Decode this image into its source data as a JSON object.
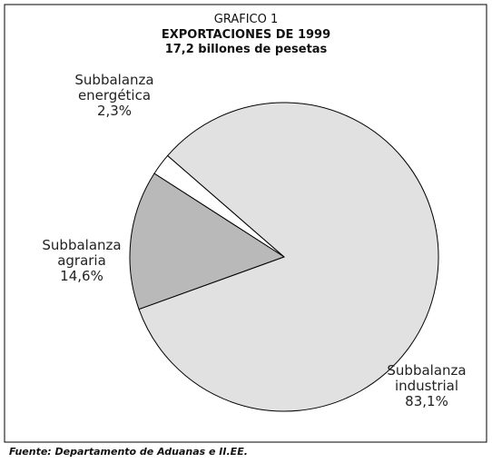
{
  "chart_data": {
    "type": "pie",
    "title": "GRAFICO 1",
    "subtitle": "EXPORTACIONES DE 1999",
    "subtitle2": "17,2 billones de pesetas",
    "source": "Fuente: Departamento de Aduanas e II.EE.",
    "categories": [
      "Subbalanza energética",
      "Subbalanza agraria",
      "Subbalanza industrial"
    ],
    "values": [
      2.3,
      14.6,
      83.1
    ],
    "value_labels": [
      "2,3%",
      "14,6%",
      "83,1%"
    ],
    "colors": [
      "#ffffff",
      "#b9b9b9",
      "#e1e1e1"
    ]
  }
}
